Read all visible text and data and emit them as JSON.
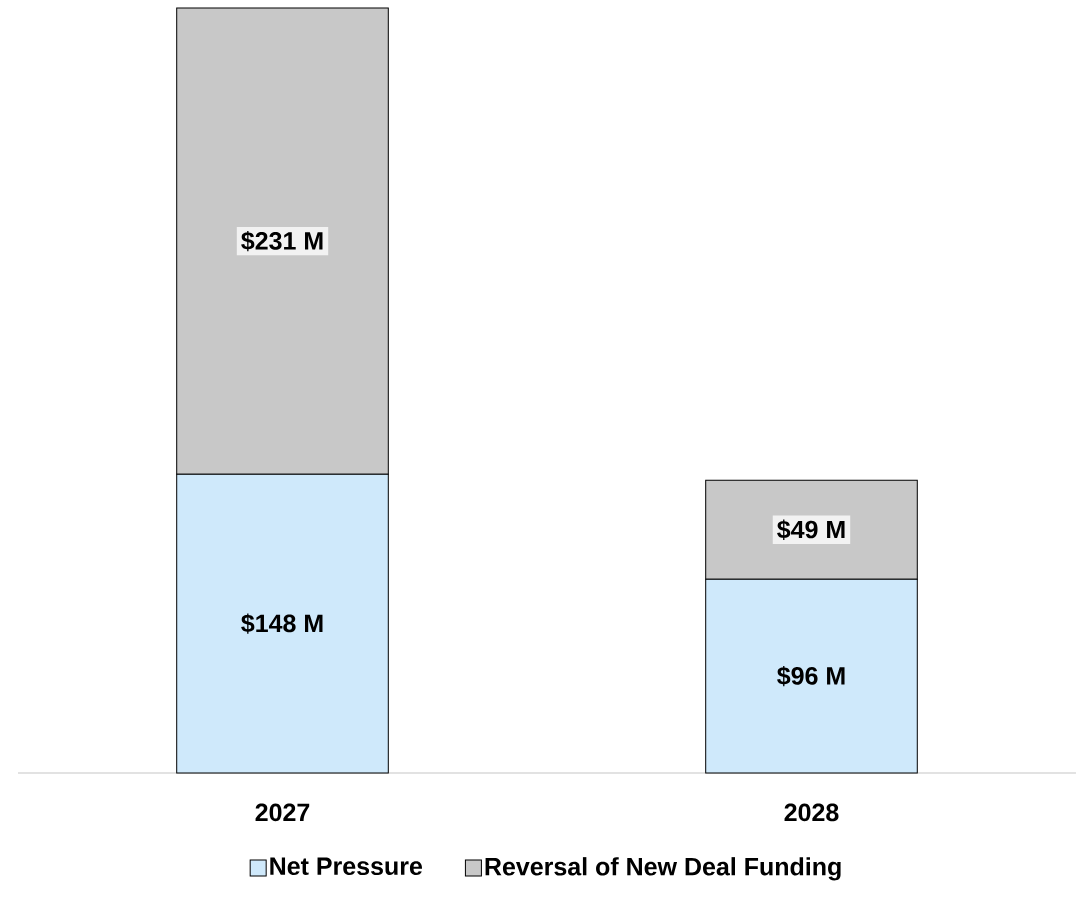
{
  "chart_data": {
    "type": "bar",
    "stacked": true,
    "categories": [
      "2027",
      "2028"
    ],
    "series": [
      {
        "name": "Net  Pressure",
        "color": "#cfe9fb",
        "values": [
          148,
          96
        ],
        "value_labels": [
          "$148 M",
          "$96 M"
        ]
      },
      {
        "name": "Reversal of New Deal Funding",
        "color": "#c8c8c8",
        "values": [
          231,
          49
        ],
        "value_labels": [
          "$231 M",
          "$49 M"
        ]
      }
    ],
    "legend": "bottom"
  }
}
